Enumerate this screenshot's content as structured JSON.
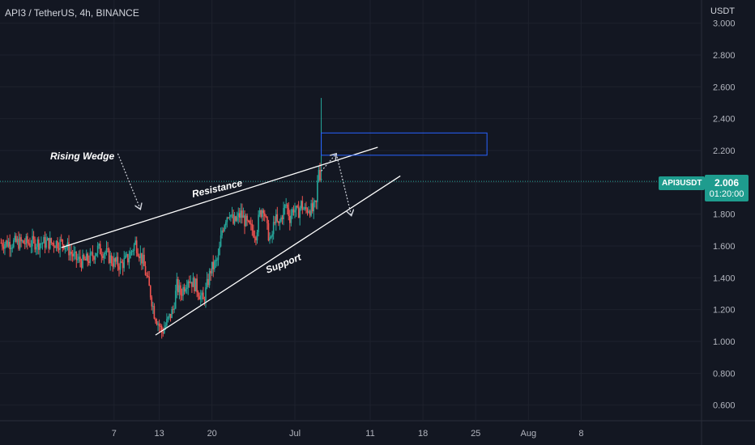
{
  "header": {
    "title": "API3 / TetherUS, 4h, BINANCE"
  },
  "price_axis": {
    "currency": "USDT"
  },
  "current_price": {
    "symbol": "API3USDT",
    "value": "2.006",
    "countdown": "01:20:00"
  },
  "annotations": {
    "pattern": "Rising Wedge",
    "resistance": "Resistance",
    "support": "Support"
  },
  "colors": {
    "background": "#131722",
    "up": "#26a69a",
    "down": "#ef5350",
    "line": "#ffffff",
    "zone": "#2962ff",
    "badge": "#1e9c8e"
  },
  "chart_data": {
    "type": "candlestick",
    "title": "API3 / TetherUS, 4h, BINANCE",
    "ylabel": "USDT",
    "ylim": [
      0.52,
      3.05
    ],
    "y_ticks": [
      "0.600",
      "0.800",
      "1.000",
      "1.200",
      "1.400",
      "1.600",
      "1.800",
      "2.000",
      "2.200",
      "2.400",
      "2.600",
      "2.800",
      "3.000"
    ],
    "x_ticks": [
      "7",
      "13",
      "20",
      "Jul",
      "11",
      "18",
      "25",
      "Aug",
      "8"
    ],
    "x_tick_days": [
      -24,
      -18,
      -11,
      0,
      10,
      17,
      24,
      31,
      38
    ],
    "last_price": 2.006,
    "price_path_days": [
      -30.5,
      -29,
      -28,
      -27,
      -26,
      -25,
      -24,
      -23,
      -22,
      -21,
      -20.5,
      -20,
      -19.5,
      -19,
      -18.5,
      -18,
      -17.5,
      -17,
      -16.5,
      -16,
      -15.5,
      -15,
      -14,
      -13,
      -12,
      -11,
      -10.5,
      -10,
      -9.5,
      -9,
      -8.5,
      -8,
      -7,
      -6,
      -5,
      -4.5,
      -4,
      -3.5,
      -3,
      -2.5,
      -2,
      -1.5,
      -1,
      -0.5,
      0,
      0.5,
      1,
      1.5,
      2,
      2.5,
      3,
      3.3,
      3.5,
      4
    ],
    "price_path_values": [
      1.62,
      1.52,
      1.5,
      1.52,
      1.58,
      1.56,
      1.5,
      1.48,
      1.52,
      1.62,
      1.56,
      1.5,
      1.4,
      1.3,
      1.18,
      1.12,
      1.06,
      1.1,
      1.15,
      1.2,
      1.35,
      1.3,
      1.4,
      1.35,
      1.25,
      1.45,
      1.48,
      1.52,
      1.7,
      1.78,
      1.82,
      1.74,
      1.8,
      1.72,
      1.68,
      1.8,
      1.85,
      1.7,
      1.62,
      1.78,
      1.72,
      1.8,
      1.86,
      1.78,
      1.84,
      1.8,
      1.86,
      1.82,
      1.84,
      1.82,
      1.86,
      2.1,
      2.05,
      2.006
    ],
    "wedge_resistance": [
      {
        "day": -31,
        "price": 1.59
      },
      {
        "day": 11,
        "price": 2.22
      }
    ],
    "wedge_support": [
      {
        "day": -18.5,
        "price": 1.04
      },
      {
        "day": 14,
        "price": 2.04
      }
    ],
    "target_zone": {
      "from_day": 3.5,
      "to_day": 25.5,
      "low": 2.17,
      "high": 2.31
    },
    "projection": [
      {
        "day": 3.5,
        "price": 2.07
      },
      {
        "day": 5.5,
        "price": 2.18
      },
      {
        "day": 7.5,
        "price": 1.79
      }
    ],
    "pattern_arrow": [
      {
        "day": -23.5,
        "price": 2.18
      },
      {
        "day": -20.5,
        "price": 1.83
      }
    ],
    "spike_day": 3.5,
    "spike_high": 2.53,
    "spike_low": 2.0
  }
}
